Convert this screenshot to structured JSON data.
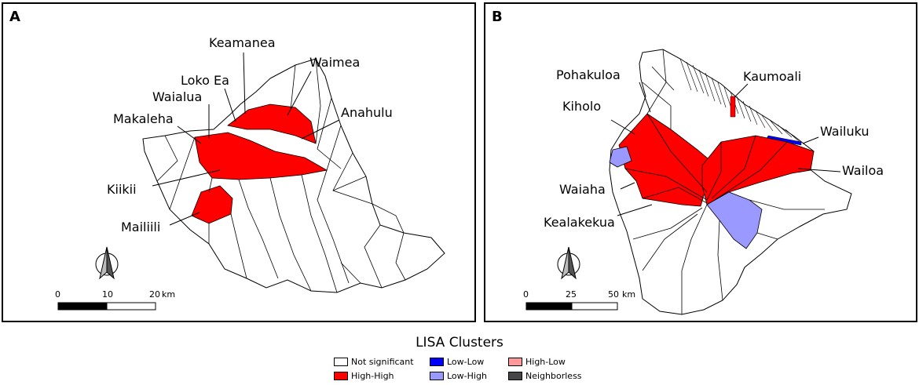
{
  "panels": [
    {
      "letter": "A",
      "labels": [
        "Keamanea",
        "Waimea",
        "Loko Ea",
        "Waialua",
        "Anahulu",
        "Makaleha",
        "Kiikii",
        "Mailiili"
      ],
      "scale": {
        "ticks": [
          "0",
          "10",
          "20"
        ],
        "unit": "km"
      }
    },
    {
      "letter": "B",
      "labels": [
        "Pohakuloa",
        "Kaumoali",
        "Kiholo",
        "Wailuku",
        "Wailoa",
        "Waiaha",
        "Kealakekua"
      ],
      "scale": {
        "ticks": [
          "0",
          "25",
          "50"
        ],
        "unit": "km"
      }
    }
  ],
  "legend": {
    "title": "LISA Clusters",
    "items": [
      {
        "label": "Not significant",
        "color": "#ffffff"
      },
      {
        "label": "High-High",
        "color": "#ff0000"
      },
      {
        "label": "Low-Low",
        "color": "#0000ff"
      },
      {
        "label": "Low-High",
        "color": "#9999ff"
      },
      {
        "label": "High-Low",
        "color": "#ff9999"
      },
      {
        "label": "Neighborless",
        "color": "#464646"
      }
    ]
  },
  "north_arrow_icon": "north-arrow-icon"
}
